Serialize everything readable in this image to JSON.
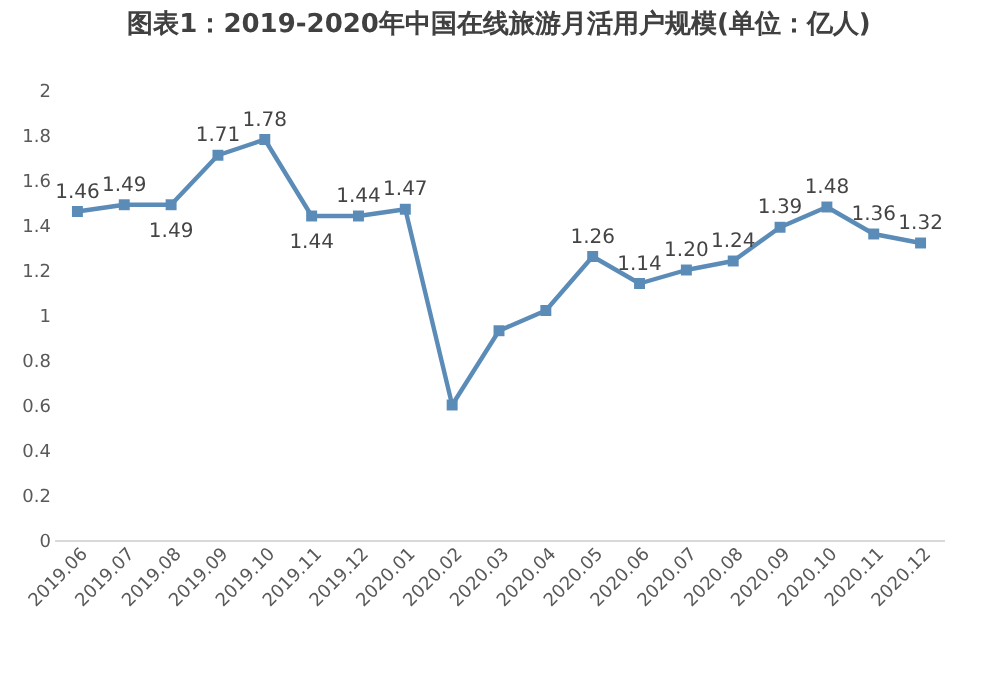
{
  "chart_data": {
    "type": "line",
    "title": "图表1：2019-2020年中国在线旅游月活用户规模(单位：亿人)",
    "categories": [
      "2019.06",
      "2019.07",
      "2019.08",
      "2019.09",
      "2019.10",
      "2019.11",
      "2019.12",
      "2020.01",
      "2020.02",
      "2020.03",
      "2020.04",
      "2020.05",
      "2020.06",
      "2020.07",
      "2020.08",
      "2020.09",
      "2020.10",
      "2020.11",
      "2020.12"
    ],
    "series": [
      {
        "color": "#5b8cb8",
        "values": [
          1.46,
          1.49,
          1.49,
          1.71,
          1.78,
          1.44,
          1.44,
          1.47,
          0.6,
          0.93,
          1.02,
          1.26,
          1.14,
          1.2,
          1.24,
          1.39,
          1.48,
          1.36,
          1.32
        ],
        "value_labels": [
          "1.46",
          "1.49",
          "1.49",
          "1.71",
          "1.78",
          "1.44",
          "1.44",
          "1.47",
          null,
          null,
          null,
          "1.26",
          "1.14",
          "1.20",
          "1.24",
          "1.39",
          "1.48",
          "1.36",
          "1.32"
        ]
      }
    ],
    "ylim": [
      0,
      2
    ],
    "yticks": [
      0,
      0.2,
      0.4,
      0.6,
      0.8,
      1,
      1.2,
      1.4,
      1.6,
      1.8,
      2
    ],
    "marker": "square",
    "line_style": "solid",
    "grid": false
  }
}
